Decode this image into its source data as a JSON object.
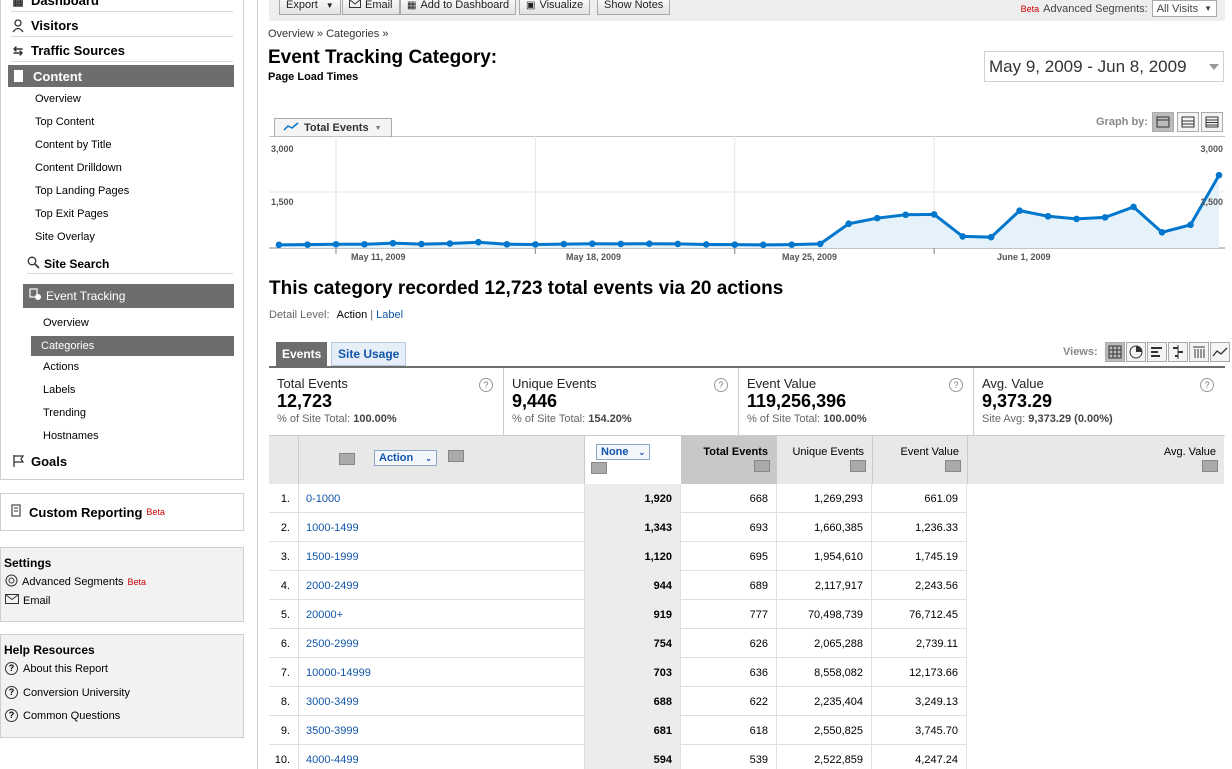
{
  "sidebar": {
    "dashboard": "Dashboard",
    "visitors": "Visitors",
    "traffic_sources": "Traffic Sources",
    "content": "Content",
    "content_items": [
      "Overview",
      "Top Content",
      "Content by Title",
      "Content Drilldown",
      "Top Landing Pages",
      "Top Exit Pages",
      "Site Overlay"
    ],
    "site_search": "Site Search",
    "event_tracking": "Event Tracking",
    "event_items": [
      "Overview",
      "Categories",
      "Actions",
      "Labels",
      "Trending",
      "Hostnames"
    ],
    "goals": "Goals",
    "custom_reporting": "Custom Reporting",
    "beta": "Beta",
    "settings": {
      "title": "Settings",
      "advanced_segments": "Advanced Segments",
      "email": "Email"
    },
    "help": {
      "title": "Help Resources",
      "items": [
        "About this Report",
        "Conversion University",
        "Common Questions"
      ]
    }
  },
  "toolbar": {
    "export": "Export",
    "email": "Email",
    "add_to_dashboard": "Add to Dashboard",
    "visualize": "Visualize",
    "show_notes": "Show Notes",
    "beta": "Beta",
    "advanced_segments": "Advanced Segments:",
    "segment_value": "All Visits"
  },
  "breadcrumb": "Overview » Categories »",
  "page_title": "Event Tracking Category:",
  "page_subtitle": "Page Load Times",
  "date_range": "May 9, 2009 - Jun 8, 2009",
  "metric_selector": "Total Events",
  "graph_by": "Graph by:",
  "chart_data": {
    "type": "area",
    "series": [
      {
        "name": "Total Events",
        "values": [
          85,
          90,
          100,
          100,
          130,
          105,
          120,
          155,
          100,
          95,
          105,
          115,
          110,
          115,
          110,
          95,
          90,
          85,
          90,
          110,
          650,
          800,
          890,
          900,
          310,
          290,
          1000,
          850,
          780,
          820,
          1100,
          420,
          620,
          1950
        ]
      }
    ],
    "ylim": [
      0,
      3000
    ],
    "yticks": [
      "3,000",
      "1,500"
    ],
    "right_yticks": [
      "3,000",
      "1,500"
    ],
    "xticks": [
      "May 11, 2009",
      "May 18, 2009",
      "May 25, 2009",
      "June 1, 2009"
    ],
    "line_color": "#0077cc",
    "fill_color": "#e6f2fa"
  },
  "summary": "This category recorded 12,723 total events via 20 actions",
  "detail_level": {
    "label": "Detail Level:",
    "current": "Action",
    "separator": "|",
    "other": "Label"
  },
  "tabs": {
    "events": "Events",
    "site_usage": "Site Usage"
  },
  "views_label": "Views:",
  "metrics": [
    {
      "label": "Total Events",
      "value": "12,723",
      "pct_prefix": "% of Site Total:",
      "pct": "100.00%"
    },
    {
      "label": "Unique Events",
      "value": "9,446",
      "pct_prefix": "% of Site Total:",
      "pct": "154.20%"
    },
    {
      "label": "Event Value",
      "value": "119,256,396",
      "pct_prefix": "% of Site Total:",
      "pct": "100.00%"
    },
    {
      "label": "Avg. Value",
      "value": "9,373.29",
      "pct_prefix": "Site Avg:",
      "pct": "9,373.29 (0.00%)"
    }
  ],
  "table": {
    "dimension": "Action",
    "secondary": "None",
    "headers": [
      "Total Events",
      "Unique Events",
      "Event Value",
      "Avg. Value"
    ],
    "rows": [
      {
        "n": "1.",
        "action": "0-1000",
        "te": "1,920",
        "ue": "668",
        "ev": "1,269,293",
        "av": "661.09"
      },
      {
        "n": "2.",
        "action": "1000-1499",
        "te": "1,343",
        "ue": "693",
        "ev": "1,660,385",
        "av": "1,236.33"
      },
      {
        "n": "3.",
        "action": "1500-1999",
        "te": "1,120",
        "ue": "695",
        "ev": "1,954,610",
        "av": "1,745.19"
      },
      {
        "n": "4.",
        "action": "2000-2499",
        "te": "944",
        "ue": "689",
        "ev": "2,117,917",
        "av": "2,243.56"
      },
      {
        "n": "5.",
        "action": "20000+",
        "te": "919",
        "ue": "777",
        "ev": "70,498,739",
        "av": "76,712.45"
      },
      {
        "n": "6.",
        "action": "2500-2999",
        "te": "754",
        "ue": "626",
        "ev": "2,065,288",
        "av": "2,739.11"
      },
      {
        "n": "7.",
        "action": "10000-14999",
        "te": "703",
        "ue": "636",
        "ev": "8,558,082",
        "av": "12,173.66"
      },
      {
        "n": "8.",
        "action": "3000-3499",
        "te": "688",
        "ue": "622",
        "ev": "2,235,404",
        "av": "3,249.13"
      },
      {
        "n": "9.",
        "action": "3500-3999",
        "te": "681",
        "ue": "618",
        "ev": "2,550,825",
        "av": "3,745.70"
      },
      {
        "n": "10.",
        "action": "4000-4499",
        "te": "594",
        "ue": "539",
        "ev": "2,522,859",
        "av": "4,247.24"
      }
    ]
  }
}
